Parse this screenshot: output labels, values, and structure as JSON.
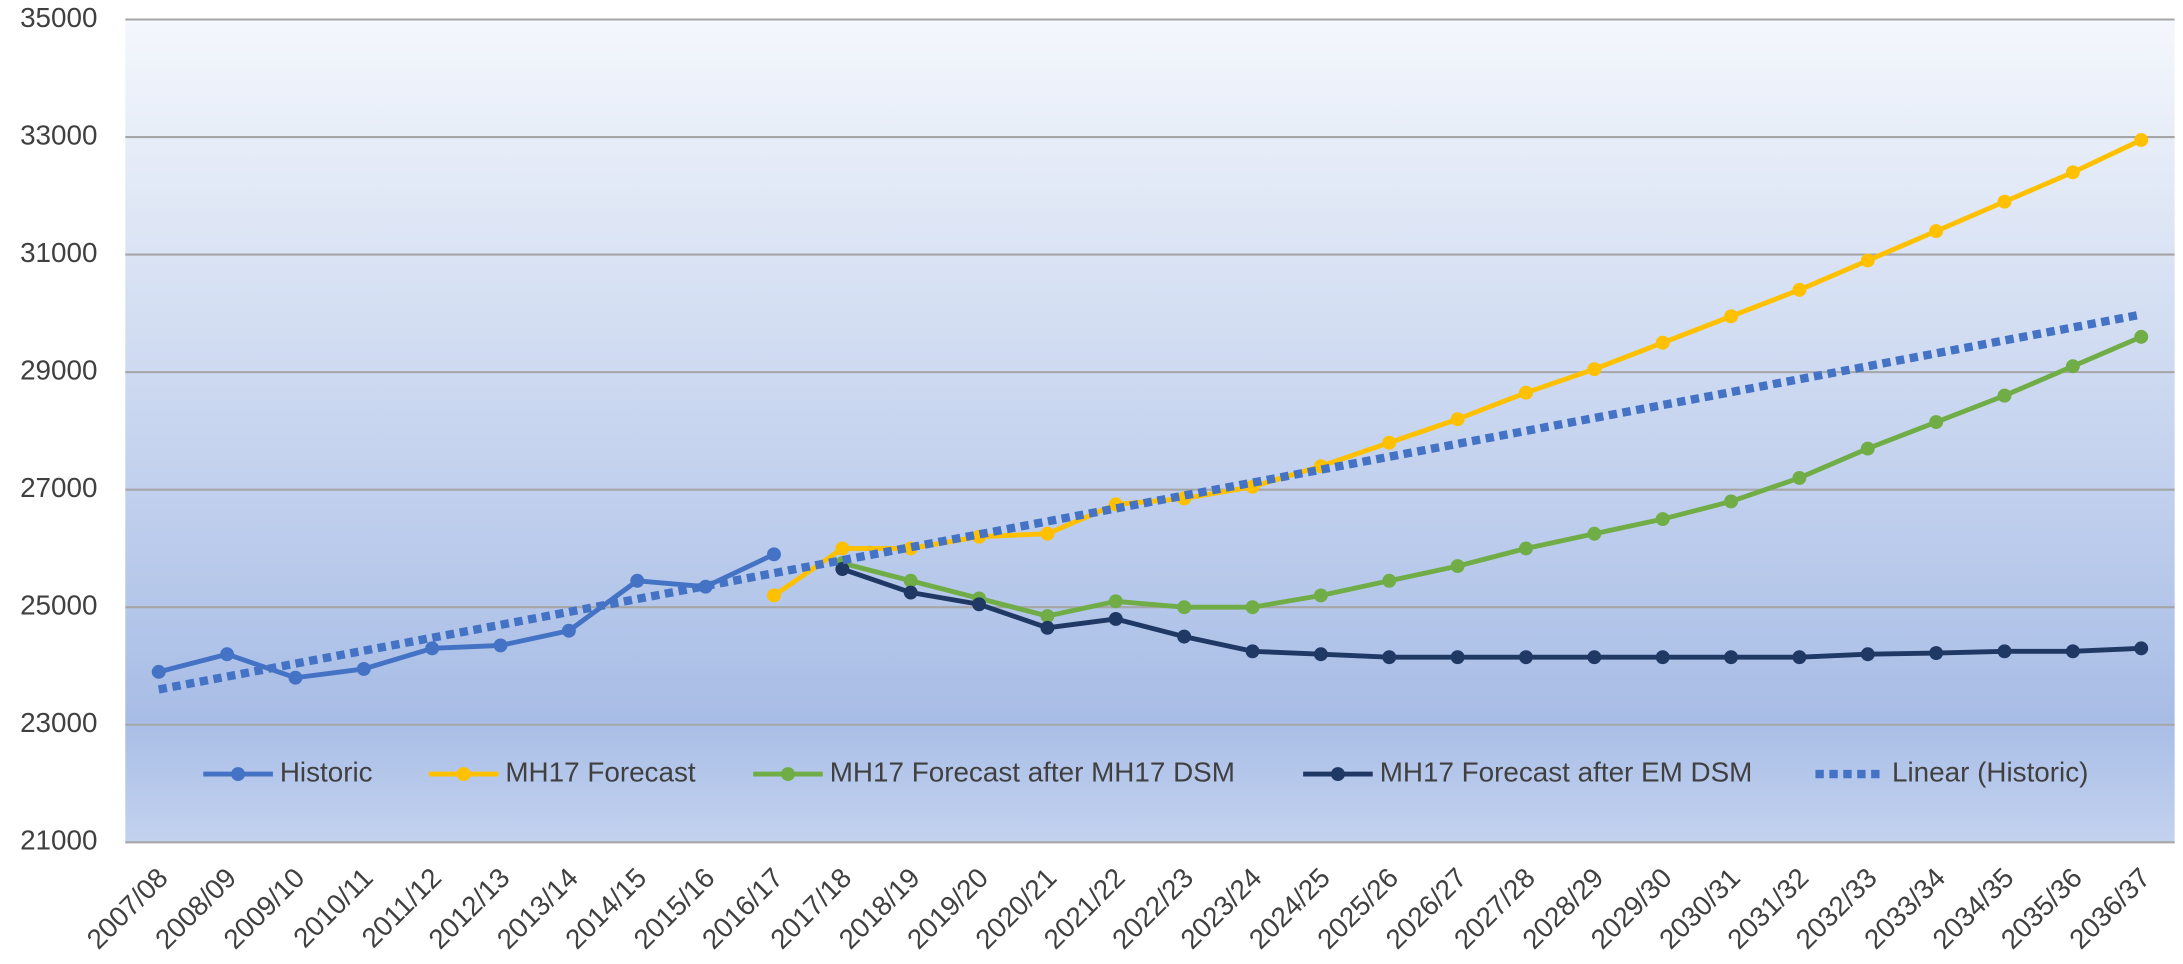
{
  "chart_data": {
    "type": "line",
    "categories": [
      "2007/08",
      "2008/09",
      "2009/10",
      "2010/11",
      "2011/12",
      "2012/13",
      "2013/14",
      "2014/15",
      "2015/16",
      "2016/17",
      "2017/18",
      "2018/19",
      "2019/20",
      "2020/21",
      "2021/22",
      "2022/23",
      "2023/24",
      "2024/25",
      "2025/26",
      "2026/27",
      "2027/28",
      "2028/29",
      "2029/30",
      "2030/31",
      "2031/32",
      "2032/33",
      "2033/34",
      "2034/35",
      "2035/36",
      "2036/37"
    ],
    "ylim": [
      21000,
      35000
    ],
    "yticks": [
      21000,
      23000,
      25000,
      27000,
      29000,
      31000,
      33000,
      35000
    ],
    "grid": true,
    "legend": "bottom",
    "series": [
      {
        "name": "Historic",
        "color": "#4472c4",
        "values": [
          23900,
          24200,
          23800,
          23950,
          24300,
          24350,
          24600,
          25450,
          25350,
          25900,
          null,
          null,
          null,
          null,
          null,
          null,
          null,
          null,
          null,
          null,
          null,
          null,
          null,
          null,
          null,
          null,
          null,
          null,
          null,
          null
        ]
      },
      {
        "name": "MH17 Forecast",
        "color": "#ffc000",
        "values": [
          null,
          null,
          null,
          null,
          null,
          null,
          null,
          null,
          null,
          25200,
          26000,
          26000,
          26200,
          26250,
          26750,
          26850,
          27050,
          27400,
          27800,
          28200,
          28650,
          29050,
          29500,
          29950,
          30400,
          30900,
          31400,
          31900,
          32400,
          32950
        ]
      },
      {
        "name": "MH17 Forecast after MH17 DSM",
        "color": "#70ad47",
        "values": [
          null,
          null,
          null,
          null,
          null,
          null,
          null,
          null,
          null,
          null,
          25750,
          25450,
          25150,
          24850,
          25100,
          25000,
          25000,
          25200,
          25450,
          25700,
          26000,
          26250,
          26500,
          26800,
          27200,
          27700,
          28150,
          28600,
          29100,
          29600
        ]
      },
      {
        "name": "MH17 Forecast after EM DSM",
        "color": "#203864",
        "values": [
          null,
          null,
          null,
          null,
          null,
          null,
          null,
          null,
          null,
          null,
          25650,
          25250,
          25050,
          24650,
          24800,
          24500,
          24250,
          24200,
          24150,
          24150,
          24150,
          24150,
          24150,
          24150,
          24150,
          24200,
          24220,
          24250,
          24250,
          24300
        ]
      },
      {
        "name": "Linear (Historic)",
        "color": "#4472c4",
        "dashed": true,
        "values": [
          23600,
          23820,
          24040,
          24260,
          24480,
          24700,
          24920,
          25140,
          25360,
          25580,
          25800,
          26020,
          26240,
          26460,
          26680,
          26900,
          27120,
          27340,
          27560,
          27780,
          28000,
          28220,
          28440,
          28660,
          28880,
          29100,
          29320,
          29540,
          29760,
          29980
        ]
      }
    ]
  }
}
